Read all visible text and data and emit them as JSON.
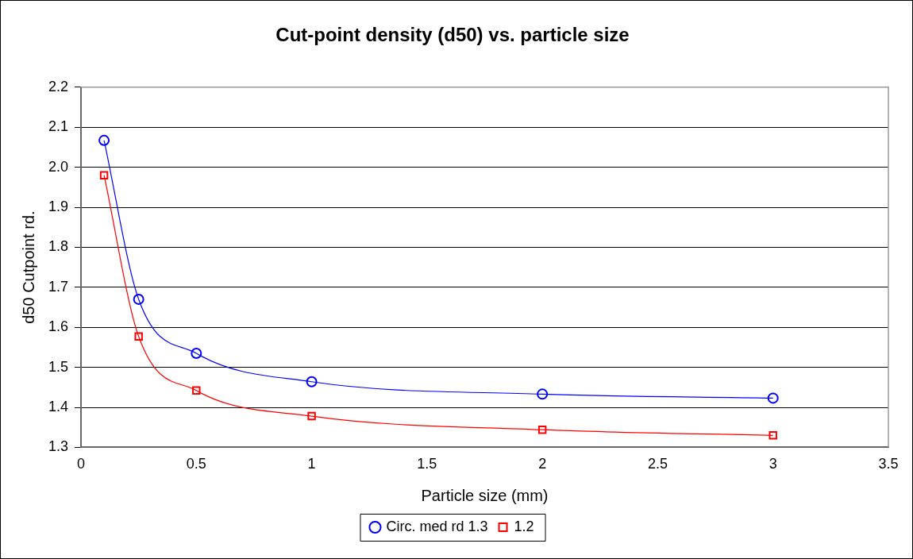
{
  "chart_data": {
    "type": "line",
    "title": "Cut-point density (d50) vs. particle size",
    "xlabel": "Particle size (mm)",
    "ylabel": "d50 Cutpoint rd.",
    "xlim": [
      0,
      3.5
    ],
    "xticks": [
      0,
      0.5,
      1,
      1.5,
      2,
      2.5,
      3,
      3.5
    ],
    "ylim": [
      1.3,
      2.2
    ],
    "yticks": [
      {
        "value": 1.3,
        "label": "1.3"
      },
      {
        "value": 1.4,
        "label": "1.4"
      },
      {
        "value": 1.5,
        "label": "1.5"
      },
      {
        "value": 1.6,
        "label": "1.6"
      },
      {
        "value": 1.7,
        "label": "1.7"
      },
      {
        "value": 1.8,
        "label": "1.8"
      },
      {
        "value": 1.9,
        "label": "1.9"
      },
      {
        "value": 2.0,
        "label": "2.0"
      },
      {
        "value": 2.1,
        "label": "2.1"
      },
      {
        "value": 2.2,
        "label": "2.2"
      }
    ],
    "grid": "y",
    "legend": "bottom",
    "x": [
      0.1,
      0.25,
      0.5,
      1,
      2,
      3
    ],
    "series": [
      {
        "name": "Circ. med rd 1.3",
        "color": "#0000ff",
        "marker": "circle",
        "values": [
          2.067,
          1.67,
          1.535,
          1.464,
          1.433,
          1.423
        ]
      },
      {
        "name": "1.2",
        "color": "#ff0000",
        "marker": "square",
        "values": [
          1.98,
          1.577,
          1.442,
          1.378,
          1.344,
          1.33
        ]
      }
    ]
  }
}
